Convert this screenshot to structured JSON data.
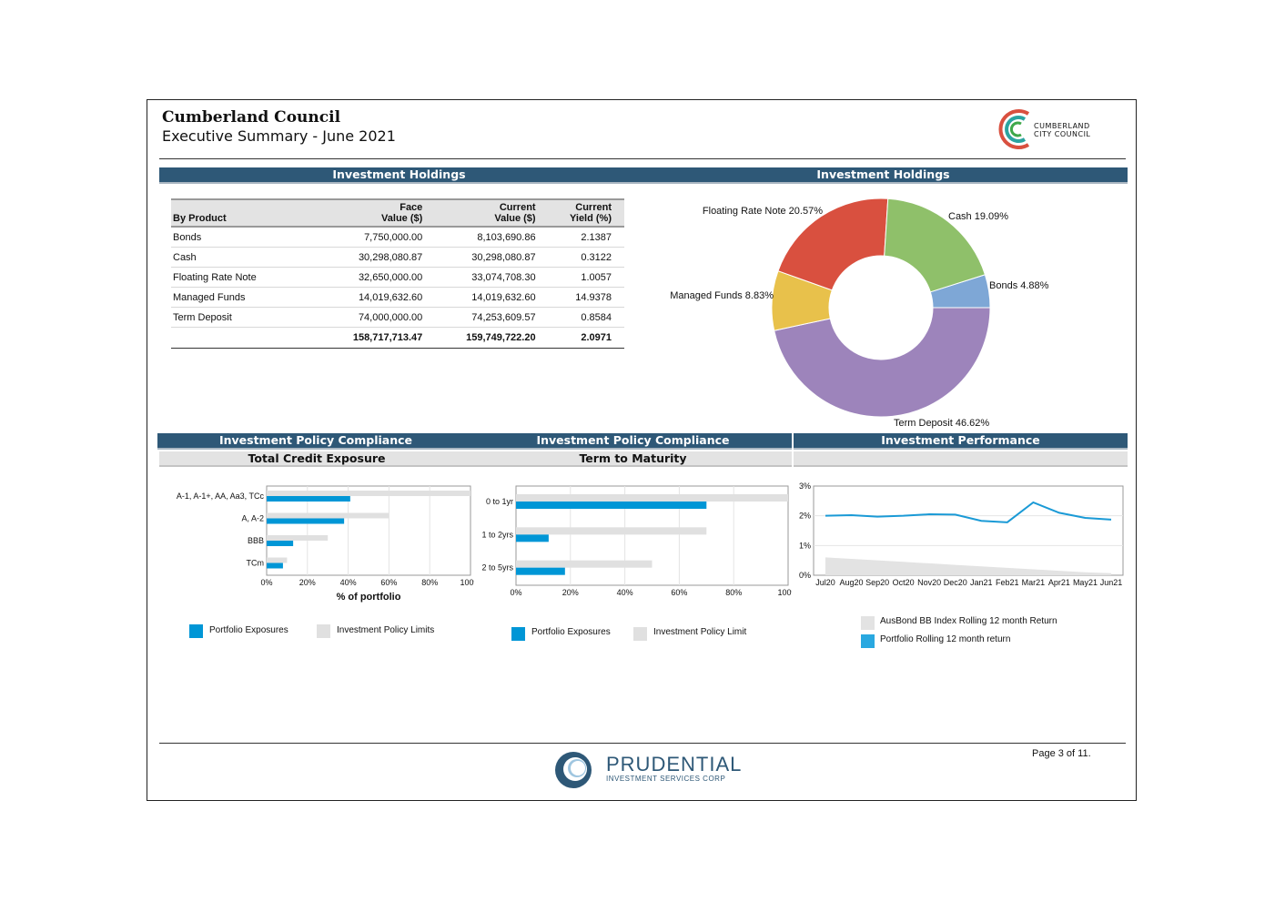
{
  "header": {
    "org": "Cumberland Council",
    "subtitle": "Executive Summary - June 2021",
    "logo_text_1": "CUMBERLAND",
    "logo_text_2": "CITY COUNCIL"
  },
  "sections": {
    "holdings_left": "Investment Holdings",
    "holdings_right": "Investment Holdings",
    "compliance_1": "Investment Policy Compliance",
    "compliance_2": "Investment Policy Compliance",
    "performance": "Investment Performance",
    "credit_exposure": "Total Credit Exposure",
    "term_to_maturity": "Term to Maturity"
  },
  "holdings_table": {
    "headers": {
      "product": "By Product",
      "face_1": "Face",
      "face_2": "Value ($)",
      "current_1": "Current",
      "current_2": "Value ($)",
      "yield_1": "Current",
      "yield_2": "Yield (%)"
    },
    "rows": [
      {
        "product": "Bonds",
        "face": "7,750,000.00",
        "current": "8,103,690.86",
        "yield": "2.1387"
      },
      {
        "product": "Cash",
        "face": "30,298,080.87",
        "current": "30,298,080.87",
        "yield": "0.3122"
      },
      {
        "product": "Floating Rate Note",
        "face": "32,650,000.00",
        "current": "33,074,708.30",
        "yield": "1.0057"
      },
      {
        "product": "Managed Funds",
        "face": "14,019,632.60",
        "current": "14,019,632.60",
        "yield": "14.9378"
      },
      {
        "product": "Term Deposit",
        "face": "74,000,000.00",
        "current": "74,253,609.57",
        "yield": "0.8584"
      }
    ],
    "total": {
      "face": "158,717,713.47",
      "current": "159,749,722.20",
      "yield": "2.0971"
    }
  },
  "chart_data": [
    {
      "type": "pie",
      "title": "",
      "slices": [
        {
          "label": "Bonds 4.88%",
          "value": 4.88,
          "color": "#7ea7d6"
        },
        {
          "label": "Term Deposit 46.62%",
          "value": 46.62,
          "color": "#9d84bb"
        },
        {
          "label": "Managed Funds 8.83%",
          "value": 8.83,
          "color": "#e8c14b"
        },
        {
          "label": "Floating Rate Note 20.57%",
          "value": 20.57,
          "color": "#d9503f"
        },
        {
          "label": "Cash 19.09%",
          "value": 19.09,
          "color": "#8fc06a"
        }
      ]
    },
    {
      "type": "bar",
      "orientation": "horizontal",
      "categories": [
        "A-1, A-1+, AA, Aa3, TCc",
        "A, A-2",
        "BBB",
        "TCm"
      ],
      "series": [
        {
          "name": "Portfolio Exposures",
          "values": [
            41,
            38,
            13,
            8
          ],
          "color": "#0096d6"
        },
        {
          "name": "Investment Policy Limits",
          "values": [
            100,
            60,
            30,
            10
          ],
          "color": "#e0e0e0"
        }
      ],
      "xlabel": "% of portfolio",
      "xlim": [
        0,
        100
      ],
      "xticks": [
        "0%",
        "20%",
        "40%",
        "60%",
        "80%",
        "100%"
      ]
    },
    {
      "type": "bar",
      "orientation": "horizontal",
      "categories": [
        "0 to 1yr",
        "1 to 2yrs",
        "2 to 5yrs"
      ],
      "series": [
        {
          "name": "Portfolio Exposures",
          "values": [
            70,
            12,
            18
          ],
          "color": "#0096d6"
        },
        {
          "name": "Investment Policy Limit",
          "values": [
            100,
            70,
            50
          ],
          "color": "#e0e0e0"
        }
      ],
      "xlim": [
        0,
        100
      ],
      "xticks": [
        "0%",
        "20%",
        "40%",
        "60%",
        "80%",
        "100%"
      ]
    },
    {
      "type": "line",
      "x": [
        "Jul20",
        "Aug20",
        "Sep20",
        "Oct20",
        "Nov20",
        "Dec20",
        "Jan21",
        "Feb21",
        "Mar21",
        "Apr21",
        "May21",
        "Jun21"
      ],
      "series": [
        {
          "name": "AusBond BB Index Rolling 12 month Return",
          "values": [
            0.6,
            0.55,
            0.5,
            0.45,
            0.4,
            0.35,
            0.3,
            0.25,
            0.2,
            0.15,
            0.1,
            0.07
          ],
          "color": "#e3e3e3",
          "style": "area"
        },
        {
          "name": "Portfolio Rolling 12 month return",
          "values": [
            2.0,
            2.02,
            1.97,
            2.0,
            2.05,
            2.04,
            1.83,
            1.78,
            2.45,
            2.1,
            1.93,
            1.87
          ],
          "color": "#1a9ad6",
          "style": "line"
        }
      ],
      "ylim": [
        0,
        3
      ],
      "yticks": [
        "0%",
        "1%",
        "2%",
        "3%"
      ]
    }
  ],
  "footer": {
    "brand": "PRUDENTIAL",
    "brand_sub": "INVESTMENT SERVICES CORP",
    "page": "Page 3 of 11."
  }
}
